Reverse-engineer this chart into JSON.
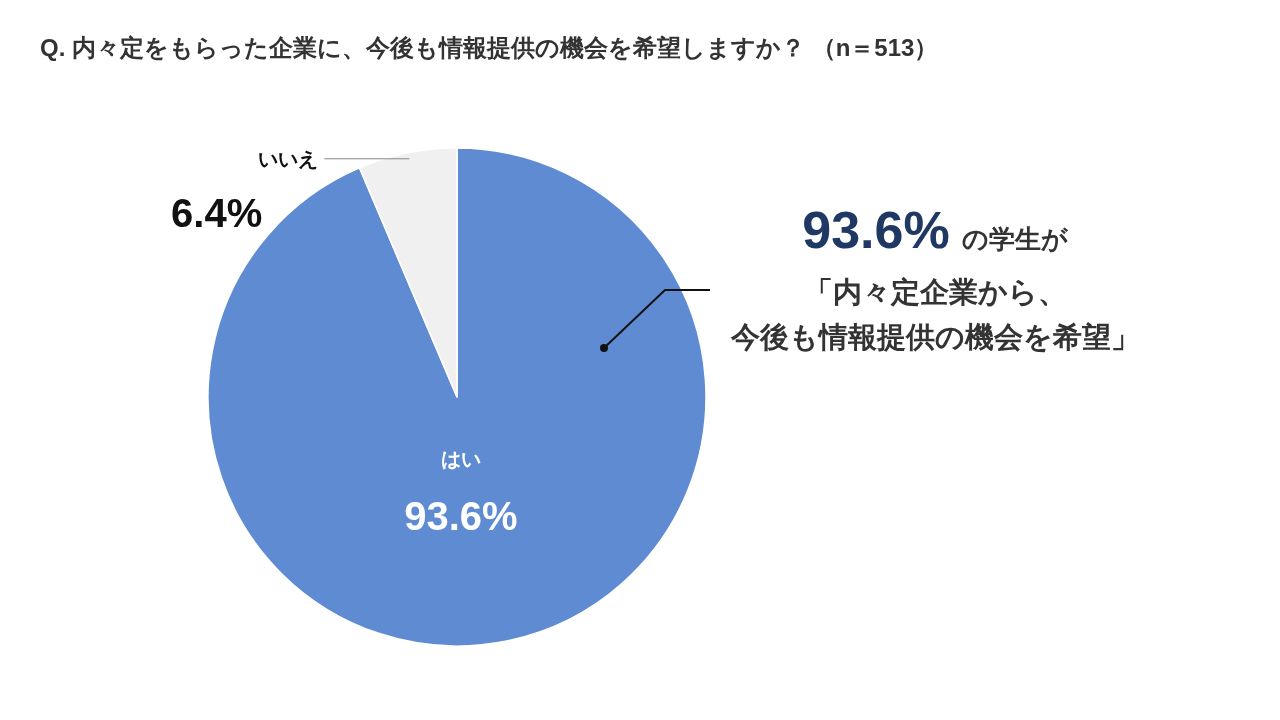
{
  "chart_data": {
    "type": "pie",
    "title": "Q. 内々定をもらった企業に、今後も情報提供の機会を希望しますか？ （n＝513）",
    "categories": [
      "はい",
      "いいえ"
    ],
    "values": [
      93.6,
      6.4
    ],
    "colors": [
      "#5f8bd3",
      "#f0f0f0"
    ],
    "value_labels": [
      "93.6%",
      "6.4%"
    ],
    "annotations": [
      "93.6%",
      "の学生が",
      "「内々定企業から、",
      "今後も情報提供の機会を希望」"
    ]
  }
}
